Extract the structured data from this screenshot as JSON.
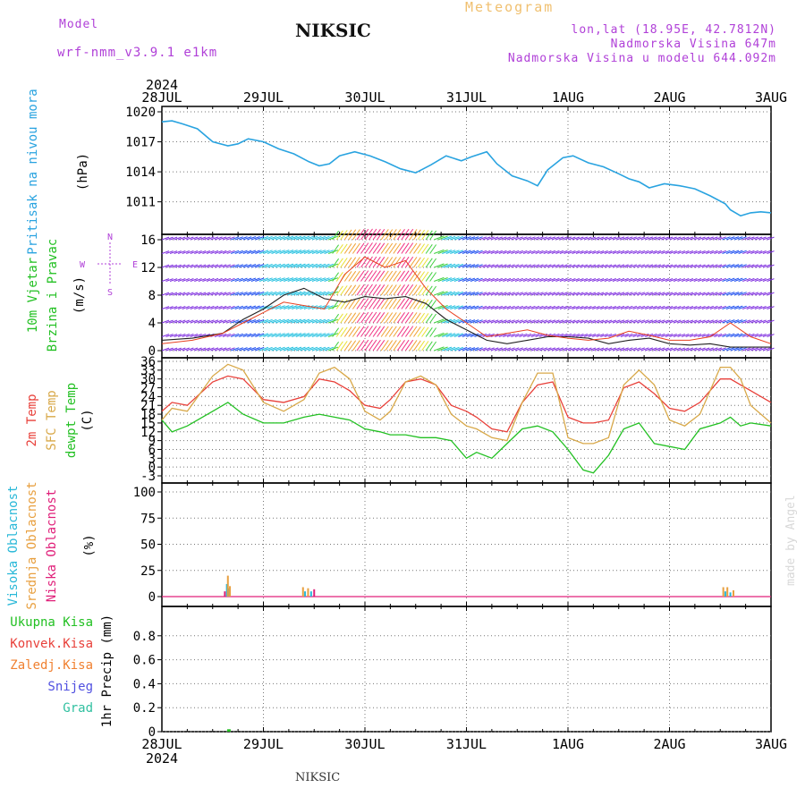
{
  "header": {
    "title": "NIKSIC",
    "subtitle": "Meteogram",
    "model_label": "Model",
    "model_name": "wrf-nmm_v3.9.1  e1km",
    "coords": "lon,lat (18.95E, 42.7812N)",
    "elevation": "Nadmorska Visina 647m",
    "model_elevation": "Nadmorska Visina u modelu 644.092m"
  },
  "footer": {
    "station": "NIKSIC",
    "credit": "made by Angel"
  },
  "time_axis": {
    "year": "2024",
    "labels": [
      "28JUL",
      "29JUL",
      "30JUL",
      "31JUL",
      "1AUG",
      "2AUG",
      "3AUG"
    ]
  },
  "colors": {
    "pressure": "#29a3e0",
    "temp2m": "#e8403a",
    "sfc_temp": "#d8a848",
    "dewpt": "#22c022",
    "cloud_high": "#29b8d8",
    "cloud_mid": "#e8a040",
    "cloud_low": "#e0207a",
    "total_precip": "#22c022",
    "convective": "#e8403a",
    "freezing": "#f08030",
    "snow": "#5050e0",
    "hail": "#30c0a0",
    "wind_compass": "#b040d8"
  },
  "chart_data": [
    {
      "type": "line",
      "panel": "pressure",
      "ylabel": [
        "Pritisak na nivou mora",
        "(hPa)"
      ],
      "ylim": [
        1009,
        1020
      ],
      "yticks": [
        1011,
        1014,
        1017,
        1020
      ],
      "x_days": [
        0,
        0.1,
        0.2,
        0.35,
        0.5,
        0.65,
        0.75,
        0.85,
        1.0,
        1.15,
        1.3,
        1.45,
        1.55,
        1.65,
        1.75,
        1.9,
        2.05,
        2.2,
        2.35,
        2.5,
        2.65,
        2.8,
        2.95,
        3.05,
        3.2,
        3.3,
        3.45,
        3.6,
        3.7,
        3.8,
        3.95,
        4.05,
        4.2,
        4.35,
        4.5,
        4.6,
        4.7,
        4.8,
        4.95,
        5.1,
        5.25,
        5.4,
        5.55,
        5.6,
        5.7,
        5.8,
        5.9,
        6.0
      ],
      "series": [
        {
          "values": [
            1019,
            1019.1,
            1018.8,
            1018.3,
            1017,
            1016.6,
            1016.8,
            1017.3,
            1017,
            1016.3,
            1015.8,
            1015,
            1014.6,
            1014.8,
            1015.6,
            1016,
            1015.6,
            1015,
            1014.3,
            1013.9,
            1014.7,
            1015.6,
            1015.1,
            1015.5,
            1016,
            1014.8,
            1013.6,
            1013.1,
            1012.6,
            1014.2,
            1015.4,
            1015.6,
            1014.9,
            1014.5,
            1013.8,
            1013.3,
            1013.0,
            1012.4,
            1012.8,
            1012.6,
            1012.3,
            1011.6,
            1010.8,
            1010.2,
            1009.6,
            1009.9,
            1010.0,
            1009.9
          ]
        }
      ]
    },
    {
      "type": "line",
      "panel": "wind",
      "ylabel": [
        "10m Vjetar",
        "Brzina i Pravac",
        "(m/s)"
      ],
      "compass": [
        "N",
        "E",
        "S",
        "W"
      ],
      "ylim": [
        0,
        16
      ],
      "yticks": [
        0,
        4,
        8,
        12,
        16
      ],
      "x_days": [
        0,
        0.3,
        0.6,
        0.8,
        1.0,
        1.2,
        1.4,
        1.6,
        1.8,
        2.0,
        2.2,
        2.4,
        2.6,
        2.8,
        3.0,
        3.2,
        3.4,
        3.6,
        3.8,
        4.0,
        4.2,
        4.4,
        4.6,
        4.8,
        5.0,
        5.2,
        5.4,
        5.6,
        5.8,
        6.0
      ],
      "series": [
        {
          "values": [
            1.5,
            1.8,
            2.5,
            4.5,
            6,
            8,
            9,
            7.5,
            7,
            7.8,
            7.5,
            7.8,
            6.8,
            4.5,
            3,
            1.5,
            1,
            1.5,
            2,
            2,
            1.8,
            1,
            1.5,
            1.8,
            1,
            0.8,
            1,
            0.5,
            0.5,
            0.5
          ]
        },
        {
          "values": [
            1,
            1.5,
            2.5,
            4,
            5.5,
            7,
            6.5,
            6,
            11,
            13.5,
            12,
            13,
            9,
            6,
            4,
            2,
            2.5,
            3,
            2.2,
            1.8,
            1.5,
            1.8,
            2.8,
            2.2,
            1.5,
            1.5,
            2,
            4,
            2,
            1
          ]
        }
      ]
    },
    {
      "type": "line",
      "panel": "temperature",
      "ylabel": [
        "2m Temp",
        "SFC Temp",
        "dewpt Temp",
        "(C)"
      ],
      "ylim": [
        -3,
        36
      ],
      "yticks": [
        -3,
        0,
        3,
        6,
        9,
        12,
        15,
        18,
        21,
        24,
        27,
        30,
        33,
        36
      ],
      "x_days": [
        0,
        0.1,
        0.25,
        0.5,
        0.65,
        0.8,
        1.0,
        1.2,
        1.4,
        1.55,
        1.7,
        1.85,
        2.0,
        2.15,
        2.25,
        2.4,
        2.55,
        2.7,
        2.85,
        3.0,
        3.1,
        3.25,
        3.4,
        3.55,
        3.7,
        3.85,
        4.0,
        4.15,
        4.25,
        4.4,
        4.55,
        4.7,
        4.85,
        5.0,
        5.15,
        5.3,
        5.5,
        5.6,
        5.7,
        5.8,
        6.0
      ],
      "series": [
        {
          "name": "2m Temp",
          "values": [
            19,
            22,
            21,
            29,
            31,
            30,
            23,
            22,
            24,
            30,
            29,
            26,
            21,
            20,
            23,
            29,
            30,
            28,
            21,
            19,
            17,
            13,
            12,
            22,
            28,
            29,
            17,
            15,
            15,
            16,
            27,
            29,
            25,
            20,
            19,
            22,
            30,
            30,
            28,
            26,
            22
          ]
        },
        {
          "name": "SFC Temp",
          "values": [
            16,
            20,
            19,
            31,
            35,
            33,
            22,
            19,
            23,
            32,
            34,
            30,
            19,
            16,
            19,
            29,
            31,
            28,
            18,
            14,
            13,
            10,
            9,
            22,
            32,
            32,
            10,
            8,
            8,
            10,
            28,
            33,
            28,
            16,
            14,
            18,
            34,
            34,
            30,
            21,
            15
          ]
        },
        {
          "name": "dewpt Temp",
          "values": [
            16,
            12,
            14,
            19,
            22,
            18,
            15,
            15,
            17,
            18,
            17,
            16,
            13,
            12,
            11,
            11,
            10,
            10,
            9,
            3,
            5,
            3,
            8,
            13,
            14,
            12,
            6,
            -1,
            -2,
            4,
            13,
            15,
            8,
            7,
            6,
            13,
            15,
            17,
            14,
            15,
            14
          ]
        }
      ]
    },
    {
      "type": "bar",
      "panel": "clouds",
      "ylabel": [
        "Visoka Oblacnost",
        "Srednja Oblacnost",
        "Niska Oblacnost",
        "(%)"
      ],
      "ylim": [
        0,
        100
      ],
      "yticks": [
        0,
        25,
        50,
        75,
        100
      ],
      "series": [
        {
          "name": "Visoka Oblacnost",
          "x_days": [
            0.64,
            0.66,
            1.41,
            1.47,
            5.55,
            5.6
          ],
          "values": [
            12,
            8,
            5,
            5,
            5,
            4
          ]
        },
        {
          "name": "Srednja Oblacnost",
          "x_days": [
            0.65,
            0.67,
            1.39,
            1.44,
            5.53,
            5.57,
            5.63
          ],
          "values": [
            20,
            10,
            9,
            8,
            9,
            9,
            6
          ]
        },
        {
          "name": "Niska Oblacnost",
          "x_days": [
            0.62,
            1.5
          ],
          "values": [
            5,
            7
          ]
        }
      ]
    },
    {
      "type": "bar",
      "panel": "precip",
      "ylabel": [
        "1hr Precip (mm)"
      ],
      "legend": [
        "Ukupna Kisa",
        "Konvek.Kisa",
        "Zaledj.Kisa",
        "Snijeg",
        "Grad"
      ],
      "ylim": [
        0,
        1.0
      ],
      "yticks": [
        0,
        0.2,
        0.4,
        0.6,
        0.8
      ],
      "series": [
        {
          "name": "Ukupna Kisa",
          "x_days": [
            0.66
          ],
          "values": [
            0.02
          ]
        }
      ]
    }
  ]
}
